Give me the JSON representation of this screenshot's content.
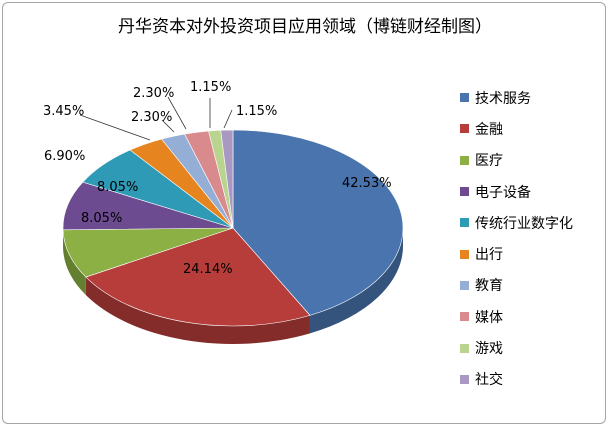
{
  "chart_data": {
    "type": "pie",
    "title": "丹华资本对外投资项目应用领域（博链财经制图）",
    "slices": [
      {
        "label": "技术服务",
        "value": 42.53,
        "text": "42.53%",
        "color": "#4a74ad"
      },
      {
        "label": "金融",
        "value": 24.14,
        "text": "24.14%",
        "color": "#b63d3a"
      },
      {
        "label": "医疗",
        "value": 8.05,
        "text": "8.05%",
        "color": "#8cb043"
      },
      {
        "label": "电子设备",
        "value": 8.05,
        "text": "8.05%",
        "color": "#6d4b90"
      },
      {
        "label": "传统行业数字化",
        "value": 6.9,
        "text": "6.90%",
        "color": "#2e9ab5"
      },
      {
        "label": "出行",
        "value": 3.45,
        "text": "3.45%",
        "color": "#e6841f"
      },
      {
        "label": "教育",
        "value": 2.3,
        "text": "2.30%",
        "color": "#94aed6"
      },
      {
        "label": "媒体",
        "value": 2.3,
        "text": "2.30%",
        "color": "#d98a8d"
      },
      {
        "label": "游戏",
        "value": 1.15,
        "text": "1.15%",
        "color": "#b9d48e"
      },
      {
        "label": "社交",
        "value": 1.15,
        "text": "1.15%",
        "color": "#a898c2"
      }
    ],
    "legend_position": "right"
  }
}
